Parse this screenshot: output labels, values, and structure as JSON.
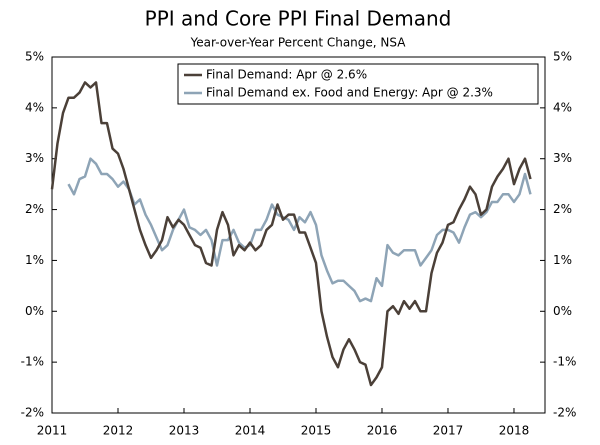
{
  "chart_data": {
    "type": "line",
    "title": "PPI and Core PPI Final Demand",
    "subtitle": "Year-over-Year Percent Change, NSA",
    "x": [
      2011,
      2011.083,
      2011.167,
      2011.25,
      2011.333,
      2011.417,
      2011.5,
      2011.583,
      2011.667,
      2011.75,
      2011.833,
      2011.917,
      2012,
      2012.083,
      2012.167,
      2012.25,
      2012.333,
      2012.417,
      2012.5,
      2012.583,
      2012.667,
      2012.75,
      2012.833,
      2012.917,
      2013,
      2013.083,
      2013.167,
      2013.25,
      2013.333,
      2013.417,
      2013.5,
      2013.583,
      2013.667,
      2013.75,
      2013.833,
      2013.917,
      2014,
      2014.083,
      2014.167,
      2014.25,
      2014.333,
      2014.417,
      2014.5,
      2014.583,
      2014.667,
      2014.75,
      2014.833,
      2014.917,
      2015,
      2015.083,
      2015.167,
      2015.25,
      2015.333,
      2015.417,
      2015.5,
      2015.583,
      2015.667,
      2015.75,
      2015.833,
      2015.917,
      2016,
      2016.083,
      2016.167,
      2016.25,
      2016.333,
      2016.417,
      2016.5,
      2016.583,
      2016.667,
      2016.75,
      2016.833,
      2016.917,
      2017,
      2017.083,
      2017.167,
      2017.25,
      2017.333,
      2017.417,
      2017.5,
      2017.583,
      2017.667,
      2017.75,
      2017.833,
      2017.917,
      2018,
      2018.083,
      2018.167,
      2018.25
    ],
    "series": [
      {
        "name": "Final Demand: Apr @ 2.6%",
        "color": "#4b4038",
        "values": [
          2.4,
          3.3,
          3.9,
          4.2,
          4.2,
          4.3,
          4.5,
          4.4,
          4.5,
          3.7,
          3.7,
          3.2,
          3.1,
          2.8,
          2.4,
          2.0,
          1.6,
          1.3,
          1.05,
          1.2,
          1.4,
          1.85,
          1.65,
          1.8,
          1.7,
          1.5,
          1.3,
          1.25,
          0.95,
          0.9,
          1.6,
          1.95,
          1.7,
          1.1,
          1.3,
          1.2,
          1.35,
          1.2,
          1.3,
          1.6,
          1.7,
          2.1,
          1.8,
          1.9,
          1.9,
          1.55,
          1.55,
          1.25,
          0.95,
          0.0,
          -0.5,
          -0.9,
          -1.1,
          -0.75,
          -0.55,
          -0.75,
          -1.0,
          -1.05,
          -1.45,
          -1.3,
          -1.1,
          0.0,
          0.1,
          -0.05,
          0.2,
          0.05,
          0.2,
          0.0,
          0.0,
          0.75,
          1.15,
          1.35,
          1.7,
          1.75,
          2.0,
          2.2,
          2.45,
          2.3,
          1.9,
          2.0,
          2.45,
          2.65,
          2.8,
          3.0,
          2.5,
          2.8,
          3.0,
          2.6
        ]
      },
      {
        "name": "Final Demand ex. Food and Energy: Apr @ 2.3%",
        "color": "#8ea4b6",
        "values": [
          null,
          null,
          null,
          2.5,
          2.3,
          2.6,
          2.65,
          3.0,
          2.9,
          2.7,
          2.7,
          2.6,
          2.45,
          2.55,
          2.4,
          2.1,
          2.2,
          1.9,
          1.7,
          1.45,
          1.2,
          1.3,
          1.6,
          1.8,
          2.0,
          1.65,
          1.6,
          1.5,
          1.6,
          1.4,
          0.9,
          1.4,
          1.4,
          1.6,
          1.35,
          1.25,
          1.3,
          1.6,
          1.6,
          1.8,
          2.1,
          1.9,
          1.85,
          1.8,
          1.6,
          1.85,
          1.75,
          1.95,
          1.7,
          1.1,
          0.8,
          0.55,
          0.6,
          0.6,
          0.5,
          0.4,
          0.2,
          0.25,
          0.2,
          0.65,
          0.5,
          1.3,
          1.15,
          1.1,
          1.2,
          1.2,
          1.2,
          0.9,
          1.05,
          1.2,
          1.5,
          1.6,
          1.6,
          1.55,
          1.35,
          1.65,
          1.9,
          1.95,
          1.85,
          1.95,
          2.15,
          2.15,
          2.3,
          2.3,
          2.15,
          2.3,
          2.7,
          2.3
        ]
      }
    ],
    "xlim": [
      2011,
      2018.47
    ],
    "xticks": [
      2011,
      2012,
      2013,
      2014,
      2015,
      2016,
      2017,
      2018
    ],
    "ylim": [
      -2,
      5
    ],
    "yticks": [
      {
        "value": -2,
        "label": "-2%"
      },
      {
        "value": -1,
        "label": "-1%"
      },
      {
        "value": 0,
        "label": "0%"
      },
      {
        "value": 1,
        "label": "1%"
      },
      {
        "value": 2,
        "label": "2%"
      },
      {
        "value": 3,
        "label": "3%"
      },
      {
        "value": 4,
        "label": "4%"
      },
      {
        "value": 5,
        "label": "5%"
      }
    ],
    "legend": "top-right",
    "grid": false
  }
}
